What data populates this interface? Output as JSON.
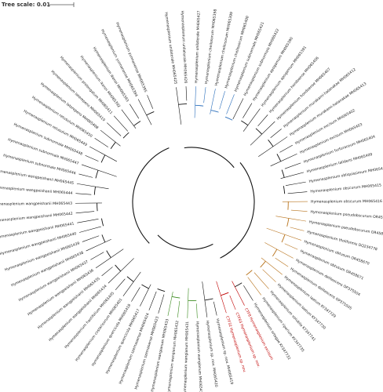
{
  "header": {
    "scale_label": "Tree scale: 0.01"
  },
  "leaves": [
    {
      "label": "Hymenasplenium unilaterale MH065425",
      "color": "#222222"
    },
    {
      "label": "Hymenasplenium unilaterale MH065426",
      "color": "#222222"
    },
    {
      "label": "Hymenasplenium unilaterale MH065427",
      "color": "#222222"
    },
    {
      "label": "Hymenasplenium cheilosorum MH065398",
      "color": "#222222"
    },
    {
      "label": "Hymenasplenium cheilosorum MH065399",
      "color": "#222222"
    },
    {
      "label": "Hymenasplenium cheilosorum MH065400",
      "color": "#222222"
    },
    {
      "label": "Hymenasplenium subnormale MH065421",
      "color": "#222222"
    },
    {
      "label": "Hymenasplenium subnormale MH065422",
      "color": "#222222"
    },
    {
      "label": "Hymenasplenium apogamum MH065390",
      "color": "#222222"
    },
    {
      "label": "Hymenasplenium apogamum MH065391",
      "color": "#222222"
    },
    {
      "label": "Hymenasplenium hondoense MH065406",
      "color": "#222222"
    },
    {
      "label": "Hymenasplenium hondoense MH065407",
      "color": "#222222"
    },
    {
      "label": "Hymenasplenium murakami-hatanakae MH065412",
      "color": "#222222"
    },
    {
      "label": "Hymenasplenium murakami-hatanakae MH065413",
      "color": "#222222"
    },
    {
      "label": "Hymenasplenium excisum MH065402",
      "color": "#222222"
    },
    {
      "label": "Hymenasplenium excisum MH065403",
      "color": "#222222"
    },
    {
      "label": "Hymenasplenium furfuraceum MH065404",
      "color": "#222222"
    },
    {
      "label": "Hymenasplenium latidens MH065409",
      "color": "#222222"
    },
    {
      "label": "Hymenasplenium obliquissimum MH065414",
      "color": "#222222"
    },
    {
      "label": "Hymenasplenium obscurum MH065415",
      "color": "#222222"
    },
    {
      "label": "Hymenasplenium obscurum MH065416",
      "color": "#222222"
    },
    {
      "label": "Hymenasplenium pseudobscurum OR458688",
      "color": "#222222"
    },
    {
      "label": "Hymenasplenium pseudobscurum OR458689",
      "color": "#222222"
    },
    {
      "label": "Hymenasplenium tholiformis DQ234778",
      "color": "#222222"
    },
    {
      "label": "Hymenasplenium obtusum OR458670",
      "color": "#222222"
    },
    {
      "label": "Hymenasplenium obtusum OR458671",
      "color": "#222222"
    },
    {
      "label": "Hymenasplenium delitescens OP375504",
      "color": "#222222"
    },
    {
      "label": "Hymenasplenium delitescens OP375505",
      "color": "#222222"
    },
    {
      "label": "Hymenasplenium laetum KY347729",
      "color": "#222222"
    },
    {
      "label": "Hymenasplenium laetum KY347730",
      "color": "#222222"
    },
    {
      "label": "Hymenasplenium volubile KY347741",
      "color": "#222222"
    },
    {
      "label": "Hymenasplenium riparium KY347735",
      "color": "#222222"
    },
    {
      "label": "Hymenasplenium ortegae KY347732",
      "color": "#222222"
    },
    {
      "label": "CTF8 Hymenasplenium excisum",
      "color": "#c00000"
    },
    {
      "label": "CTF63 Hymenasplenium sp. nov.",
      "color": "#c00000"
    },
    {
      "label": "CTF32 Hymenasplenium sp. nov.",
      "color": "#c00000"
    },
    {
      "label": "Hymenasplenium sp. nov. MH065419",
      "color": "#222222"
    },
    {
      "label": "Hymenasplenium sp. nov. MH065420",
      "color": "#222222"
    },
    {
      "label": "Hymenasplenium wangianum MH065430",
      "color": "#222222"
    },
    {
      "label": "Hymenasplenium wangianum MH065431",
      "color": "#222222"
    },
    {
      "label": "Hymenasplenium wangianum MH065432",
      "color": "#222222"
    },
    {
      "label": "Hymenasplenium wangianum MH065433",
      "color": "#222222"
    },
    {
      "label": "Hymenasplenium szemaoense MH065423",
      "color": "#222222"
    },
    {
      "label": "Hymenasplenium szemaoense MH065424",
      "color": "#222222"
    },
    {
      "label": "Hymenasplenium quercicola MH065417",
      "color": "#222222"
    },
    {
      "label": "Hymenasplenium quercicola MH065418",
      "color": "#222222"
    },
    {
      "label": "Hymenasplenium costarisorum MH065401",
      "color": "#222222"
    },
    {
      "label": "Hymenasplenium hastifolium MH065405",
      "color": "#222222"
    },
    {
      "label": "Hymenasplenium wangpeishanii MH065434",
      "color": "#222222"
    },
    {
      "label": "Hymenasplenium wangpeishanii MH065435",
      "color": "#222222"
    },
    {
      "label": "Hymenasplenium wangpeishanii MH065436",
      "color": "#222222"
    },
    {
      "label": "Hymenasplenium wangpeishanii MH065437",
      "color": "#222222"
    },
    {
      "label": "Hymenasplenium wangpeishanii MH065438",
      "color": "#222222"
    },
    {
      "label": "Hymenasplenium wangpeishanii MH065439",
      "color": "#222222"
    },
    {
      "label": "Hymenasplenium wangpeishanii MH065440",
      "color": "#222222"
    },
    {
      "label": "Hymenasplenium wangpeishanii MH065441",
      "color": "#222222"
    },
    {
      "label": "Hymenasplenium wangpeishanii MH065442",
      "color": "#222222"
    },
    {
      "label": "Hymenasplenium wangpeishanii MH065443",
      "color": "#222222"
    },
    {
      "label": "Hymenasplenium wangpeishanii MH065444",
      "color": "#222222"
    },
    {
      "label": "Hymenasplenium wangpeishanii MH065445",
      "color": "#222222"
    },
    {
      "label": "Hymenasplenium subnormale MH065446",
      "color": "#222222"
    },
    {
      "label": "Hymenasplenium subnormale MH065447",
      "color": "#222222"
    },
    {
      "label": "Hymenasplenium subnormale MH065448",
      "color": "#222222"
    },
    {
      "label": "Hymenasplenium retusulum MH065449",
      "color": "#222222"
    },
    {
      "label": "Hymenasplenium retusulum MH065450",
      "color": "#222222"
    },
    {
      "label": "Hymenasplenium laterepens MH065408",
      "color": "#222222"
    },
    {
      "label": "Hymenasplenium laterepens MH065410",
      "color": "#222222"
    },
    {
      "label": "Hymenasplenium prolongatum MH065411",
      "color": "#222222"
    },
    {
      "label": "Hymenasplenium ikenoi MH065392",
      "color": "#222222"
    },
    {
      "label": "Hymenasplenium ikenoi MH065393",
      "color": "#222222"
    },
    {
      "label": "Hymenasplenium yunnanense MH065394",
      "color": "#222222"
    },
    {
      "label": "Hymenasplenium yunnanense MH065395",
      "color": "#222222"
    }
  ]
}
